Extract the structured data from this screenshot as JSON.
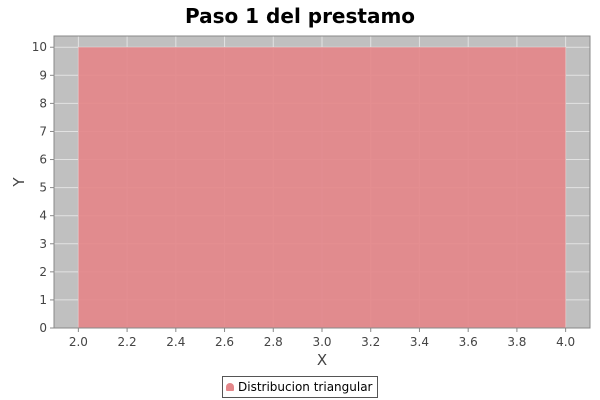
{
  "chart_data": {
    "type": "area",
    "title": "Paso 1 del prestamo",
    "xlabel": "X",
    "ylabel": "Y",
    "xlim": [
      1.9,
      4.1
    ],
    "ylim": [
      0,
      10.4
    ],
    "xticks": [
      "2.0",
      "2.2",
      "2.4",
      "2.6",
      "2.8",
      "3.0",
      "3.2",
      "3.4",
      "3.6",
      "3.8",
      "4.0"
    ],
    "yticks": [
      "0",
      "1",
      "2",
      "3",
      "4",
      "5",
      "6",
      "7",
      "8",
      "9",
      "10"
    ],
    "grid": true,
    "legend_position": "bottom",
    "series": [
      {
        "name": "Distribucion triangular",
        "color": "#e4878a",
        "x": [
          2.0,
          2.0,
          4.0,
          4.0
        ],
        "y": [
          0,
          10,
          10,
          0
        ]
      }
    ]
  },
  "colors": {
    "plot_background": "#c0c0c0",
    "gridline": "#e2e2e2",
    "axis": "#888888"
  }
}
